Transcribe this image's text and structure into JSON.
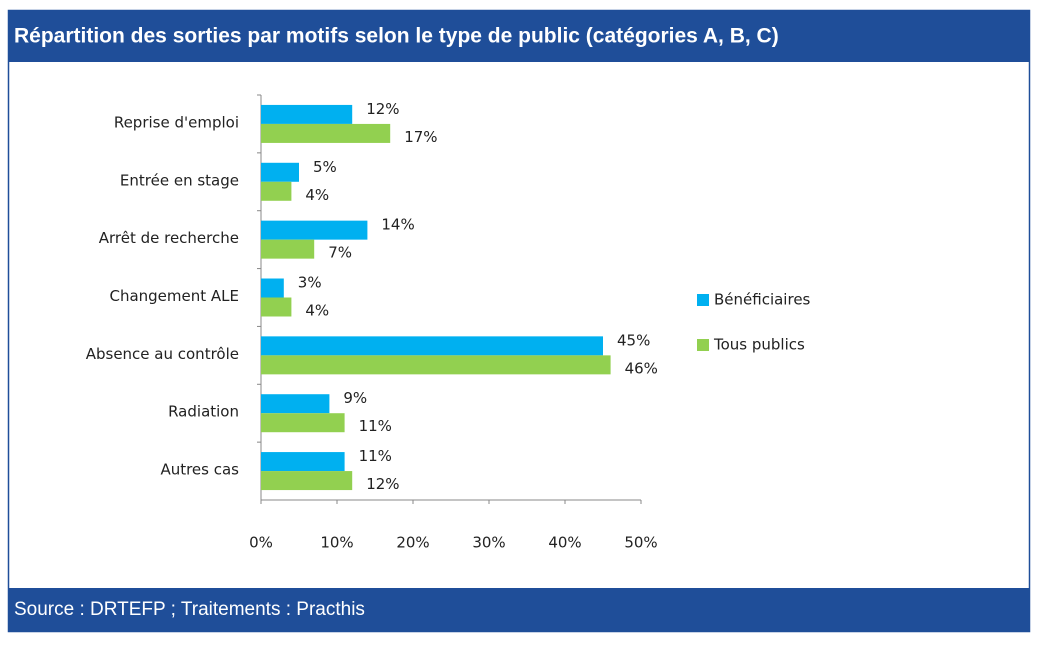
{
  "chart_data": {
    "type": "bar",
    "orientation": "horizontal",
    "title": "Répartition des sorties par motifs selon le type de public (catégories A, B, C)",
    "source": "Source : DRTEFP ; Traitements : Practhis",
    "categories": [
      "Reprise d'emploi",
      "Entrée en stage",
      "Arrêt de recherche",
      "Changement ALE",
      "Absence au contrôle",
      "Radiation",
      "Autres cas"
    ],
    "series": [
      {
        "name": "Bénéficiaires",
        "color": "#00b0f0",
        "values": [
          12,
          5,
          14,
          3,
          45,
          9,
          11
        ],
        "value_labels": [
          "12%",
          "5%",
          "14%",
          "3%",
          "45%",
          "9%",
          "11%"
        ]
      },
      {
        "name": "Tous publics",
        "color": "#92d050",
        "values": [
          17,
          4,
          7,
          4,
          46,
          11,
          12
        ],
        "value_labels": [
          "17%",
          "4%",
          "7%",
          "4%",
          "46%",
          "11%",
          "12%"
        ]
      }
    ],
    "xlim": [
      0,
      50
    ],
    "xticks": [
      {
        "value": 0,
        "label": "0%"
      },
      {
        "value": 10,
        "label": "10%"
      },
      {
        "value": 20,
        "label": "20%"
      },
      {
        "value": 30,
        "label": "30%"
      },
      {
        "value": 40,
        "label": "40%"
      },
      {
        "value": 50,
        "label": "50%"
      }
    ],
    "legend": "right"
  }
}
